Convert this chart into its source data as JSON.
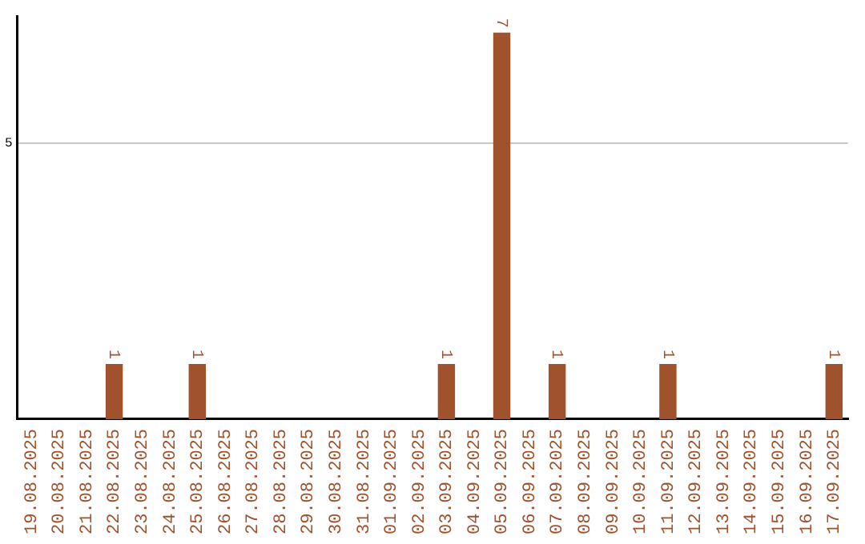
{
  "chart_data": {
    "type": "bar",
    "categories": [
      "19.08.2025",
      "20.08.2025",
      "21.08.2025",
      "22.08.2025",
      "23.08.2025",
      "24.08.2025",
      "25.08.2025",
      "26.08.2025",
      "27.08.2025",
      "28.08.2025",
      "29.08.2025",
      "30.08.2025",
      "31.08.2025",
      "01.09.2025",
      "02.09.2025",
      "03.09.2025",
      "04.09.2025",
      "05.09.2025",
      "06.09.2025",
      "07.09.2025",
      "08.09.2025",
      "09.09.2025",
      "10.09.2025",
      "11.09.2025",
      "12.09.2025",
      "13.09.2025",
      "14.09.2025",
      "15.09.2025",
      "16.09.2025",
      "17.09.2025"
    ],
    "values": [
      0,
      0,
      0,
      1,
      0,
      0,
      1,
      0,
      0,
      0,
      0,
      0,
      0,
      0,
      0,
      1,
      0,
      7,
      0,
      1,
      0,
      0,
      0,
      1,
      0,
      0,
      0,
      0,
      0,
      1
    ],
    "value_labels": [
      null,
      null,
      null,
      "1",
      null,
      null,
      "1",
      null,
      null,
      null,
      null,
      null,
      null,
      null,
      null,
      "1",
      null,
      "7",
      null,
      "1",
      null,
      null,
      null,
      "1",
      null,
      null,
      null,
      null,
      null,
      "1"
    ],
    "color": "#a0522d",
    "ylim": [
      0,
      7.3
    ],
    "yticks": [
      5
    ],
    "grid": "y",
    "legend": false
  }
}
